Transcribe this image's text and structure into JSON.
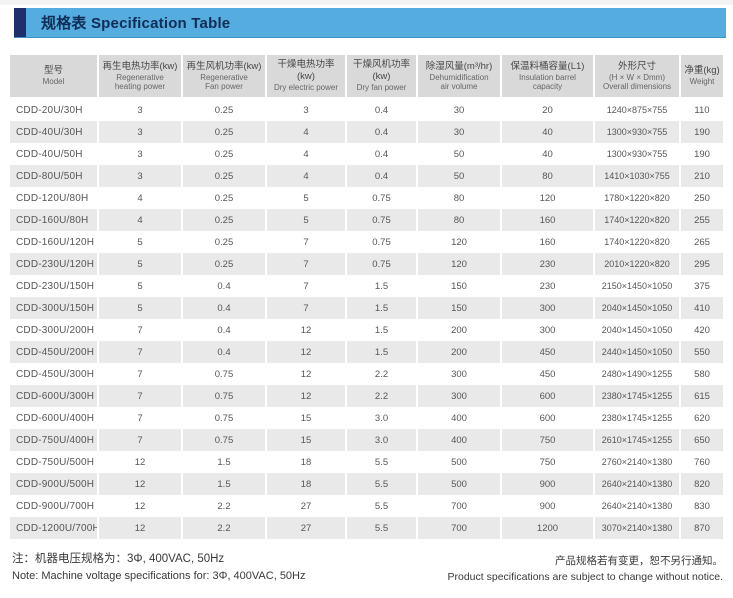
{
  "colors": {
    "bar_blue": "#55ACDE",
    "accent_navy": "#1F2F6B",
    "title_text": "#0F2D56",
    "header_bg": "#D9D9D9",
    "row_alt_bg": "#E9E9E9",
    "body_text": "#565656",
    "note_text": "#3A3A3A"
  },
  "header": {
    "title": "规格表 Specification Table"
  },
  "table": {
    "columns": [
      {
        "zh": [
          "型号"
        ],
        "en": [
          "Model"
        ]
      },
      {
        "zh": [
          "再生电热功率(kw)"
        ],
        "en": [
          "Regenerative",
          "heating power"
        ]
      },
      {
        "zh": [
          "再生风机功率(kw)"
        ],
        "en": [
          "Regenerative",
          "Fan power"
        ]
      },
      {
        "zh": [
          "干燥电热功率",
          "(kw)"
        ],
        "en": [
          "Dry electric power"
        ]
      },
      {
        "zh": [
          "干燥风机功率",
          "(kw)"
        ],
        "en": [
          "Dry fan power"
        ]
      },
      {
        "zh": [
          "除湿风量(m³/hr)"
        ],
        "en": [
          "Dehumidification",
          "air volume"
        ]
      },
      {
        "zh": [
          "保温料桶容量(L1)"
        ],
        "en": [
          "Insulation barrel",
          "capacity"
        ]
      },
      {
        "zh": [
          "外形尺寸"
        ],
        "en": [
          "(H × W × Dmm)",
          "Overall dimensions"
        ]
      },
      {
        "zh": [
          "净重(kg)"
        ],
        "en": [
          "Weight"
        ]
      }
    ],
    "rows": [
      [
        "CDD-20U/30H",
        "3",
        "0.25",
        "3",
        "0.4",
        "30",
        "20",
        "1240×875×755",
        "110"
      ],
      [
        "CDD-40U/30H",
        "3",
        "0.25",
        "4",
        "0.4",
        "30",
        "40",
        "1300×930×755",
        "190"
      ],
      [
        "CDD-40U/50H",
        "3",
        "0.25",
        "4",
        "0.4",
        "50",
        "40",
        "1300×930×755",
        "190"
      ],
      [
        "CDD-80U/50H",
        "3",
        "0.25",
        "4",
        "0.4",
        "50",
        "80",
        "1410×1030×755",
        "210"
      ],
      [
        "CDD-120U/80H",
        "4",
        "0.25",
        "5",
        "0.75",
        "80",
        "120",
        "1780×1220×820",
        "250"
      ],
      [
        "CDD-160U/80H",
        "4",
        "0.25",
        "5",
        "0.75",
        "80",
        "160",
        "1740×1220×820",
        "255"
      ],
      [
        "CDD-160U/120H",
        "5",
        "0.25",
        "7",
        "0.75",
        "120",
        "160",
        "1740×1220×820",
        "265"
      ],
      [
        "CDD-230U/120H",
        "5",
        "0.25",
        "7",
        "0.75",
        "120",
        "230",
        "2010×1220×820",
        "295"
      ],
      [
        "CDD-230U/150H",
        "5",
        "0.4",
        "7",
        "1.5",
        "150",
        "230",
        "2150×1450×1050",
        "375"
      ],
      [
        "CDD-300U/150H",
        "5",
        "0.4",
        "7",
        "1.5",
        "150",
        "300",
        "2040×1450×1050",
        "410"
      ],
      [
        "CDD-300U/200H",
        "7",
        "0.4",
        "12",
        "1.5",
        "200",
        "300",
        "2040×1450×1050",
        "420"
      ],
      [
        "CDD-450U/200H",
        "7",
        "0.4",
        "12",
        "1.5",
        "200",
        "450",
        "2440×1450×1050",
        "550"
      ],
      [
        "CDD-450U/300H",
        "7",
        "0.75",
        "12",
        "2.2",
        "300",
        "450",
        "2480×1490×1255",
        "580"
      ],
      [
        "CDD-600U/300H",
        "7",
        "0.75",
        "12",
        "2.2",
        "300",
        "600",
        "2380×1745×1255",
        "615"
      ],
      [
        "CDD-600U/400H",
        "7",
        "0.75",
        "15",
        "3.0",
        "400",
        "600",
        "2380×1745×1255",
        "620"
      ],
      [
        "CDD-750U/400H",
        "7",
        "0.75",
        "15",
        "3.0",
        "400",
        "750",
        "2610×1745×1255",
        "650"
      ],
      [
        "CDD-750U/500H",
        "12",
        "1.5",
        "18",
        "5.5",
        "500",
        "750",
        "2760×2140×1380",
        "760"
      ],
      [
        "CDD-900U/500H",
        "12",
        "1.5",
        "18",
        "5.5",
        "500",
        "900",
        "2640×2140×1380",
        "820"
      ],
      [
        "CDD-900U/700H",
        "12",
        "2.2",
        "27",
        "5.5",
        "700",
        "900",
        "2640×2140×1380",
        "830"
      ],
      [
        "CDD-1200U/700H",
        "12",
        "2.2",
        "27",
        "5.5",
        "700",
        "1200",
        "3070×2140×1380",
        "870"
      ]
    ]
  },
  "footnotes": {
    "left_zh": "注：机器电压规格为：3Φ, 400VAC, 50Hz",
    "left_en": "Note: Machine voltage specifications for: 3Φ, 400VAC, 50Hz",
    "right_zh": "产品规格若有变更，恕不另行通知。",
    "right_en": "Product specifications are subject to change without notice."
  }
}
